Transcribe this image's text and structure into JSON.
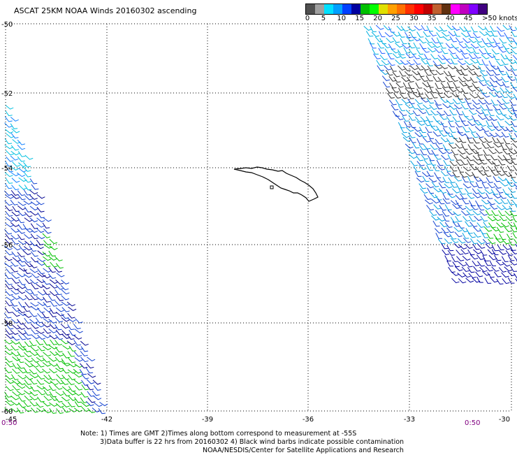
{
  "title": "ASCAT 25KM NOAA Winds 20160302 ascending",
  "colorbar": {
    "colors": [
      "#505050",
      "#a0a0a0",
      "#00e0ff",
      "#00a0ff",
      "#0040ff",
      "#0000a0",
      "#00c000",
      "#00ff00",
      "#e0e000",
      "#ffa000",
      "#ff7000",
      "#ff3000",
      "#ff0000",
      "#c00000",
      "#c06030",
      "#603010",
      "#ff00ff",
      "#c000c0",
      "#8000ff",
      "#400080"
    ],
    "labels": [
      "0",
      "5",
      "10",
      "15",
      "20",
      "25",
      "30",
      "35",
      "40",
      "45",
      ">50 knots"
    ]
  },
  "axes": {
    "lat_labels": [
      "-50",
      "-52",
      "-54",
      "-56",
      "-58",
      "-60"
    ],
    "lon_labels": [
      "-45",
      "-42",
      "-39",
      "-36",
      "-33",
      "-30"
    ]
  },
  "time_labels": {
    "left": "0:50",
    "right": "0:50"
  },
  "notes": {
    "line1": "Note: 1) Times are GMT 2)Times along bottom correspond to measurement at -55S",
    "line2": "3)Data buffer is 22 hrs from 20160302 4) Black wind barbs indicate possible contamination",
    "line3": "NOAA/NESDIS/Center for Satellite Applications and Research"
  }
}
